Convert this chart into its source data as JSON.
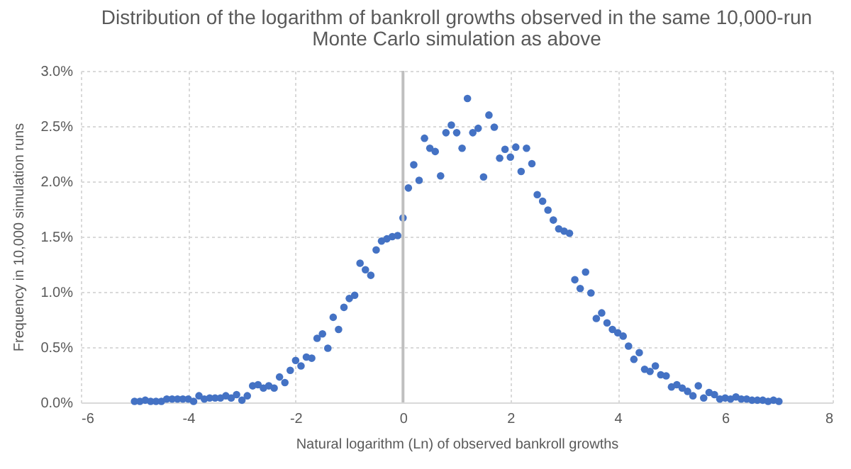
{
  "chart_data": {
    "type": "scatter",
    "title": "Distribution of the logarithm of bankroll growths observed in the same 10,000-run Monte Carlo simulation as above",
    "xlabel": "Natural logarithm (Ln) of observed bankroll growths",
    "ylabel": "Frequency in 10,000 simulation runs",
    "x": [
      -5,
      -4.9,
      -4.8,
      -4.7,
      -4.6,
      -4.5,
      -4.4,
      -4.3,
      -4.2,
      -4.1,
      -4,
      -3.9,
      -3.8,
      -3.7,
      -3.6,
      -3.5,
      -3.4,
      -3.3,
      -3.2,
      -3.1,
      -3,
      -2.9,
      -2.8,
      -2.7,
      -2.6,
      -2.5,
      -2.4,
      -2.3,
      -2.2,
      -2.1,
      -2,
      -1.9,
      -1.8,
      -1.7,
      -1.6,
      -1.5,
      -1.4,
      -1.3,
      -1.2,
      -1.1,
      -1,
      -0.9,
      -0.8,
      -0.7,
      -0.6,
      -0.5,
      -0.4,
      -0.3,
      -0.2,
      -0.1,
      0,
      0.1,
      0.2,
      0.3,
      0.4,
      0.5,
      0.6,
      0.7,
      0.8,
      0.9,
      1,
      1.1,
      1.2,
      1.3,
      1.4,
      1.5,
      1.6,
      1.7,
      1.8,
      1.9,
      2,
      2.1,
      2.2,
      2.3,
      2.4,
      2.5,
      2.6,
      2.7,
      2.8,
      2.9,
      3,
      3.1,
      3.2,
      3.3,
      3.4,
      3.5,
      3.6,
      3.7,
      3.8,
      3.9,
      4,
      4.1,
      4.2,
      4.3,
      4.4,
      4.5,
      4.6,
      4.7,
      4.8,
      4.9,
      5,
      5.1,
      5.2,
      5.3,
      5.4,
      5.5,
      5.6,
      5.7,
      5.8,
      5.9,
      6,
      6.1,
      6.2,
      6.3,
      6.4,
      6.5,
      6.6,
      6.7,
      6.8,
      6.9,
      7
    ],
    "series": [
      {
        "color": "#4472c4",
        "values": [
          0.01,
          0.01,
          0.02,
          0.01,
          0.01,
          0.01,
          0.03,
          0.03,
          0.03,
          0.03,
          0.03,
          0.01,
          0.06,
          0.03,
          0.04,
          0.04,
          0.04,
          0.06,
          0.04,
          0.07,
          0.02,
          0.06,
          0.15,
          0.16,
          0.13,
          0.15,
          0.13,
          0.23,
          0.18,
          0.29,
          0.38,
          0.33,
          0.41,
          0.4,
          0.58,
          0.62,
          0.49,
          0.77,
          0.66,
          0.86,
          0.94,
          0.97,
          1.26,
          1.2,
          1.15,
          1.38,
          1.46,
          1.48,
          1.5,
          1.51,
          1.67,
          1.94,
          2.15,
          2.01,
          2.39,
          2.3,
          2.27,
          2.05,
          2.44,
          2.51,
          2.44,
          2.3,
          2.75,
          2.44,
          2.48,
          2.04,
          2.6,
          2.49,
          2.21,
          2.29,
          2.22,
          2.31,
          2.09,
          2.3,
          2.16,
          1.88,
          1.82,
          1.74,
          1.65,
          1.57,
          1.55,
          1.53,
          1.11,
          1.03,
          1.18,
          0.99,
          0.76,
          0.81,
          0.72,
          0.66,
          0.63,
          0.6,
          0.51,
          0.39,
          0.45,
          0.3,
          0.28,
          0.33,
          0.25,
          0.24,
          0.14,
          0.16,
          0.13,
          0.1,
          0.06,
          0.15,
          0.04,
          0.09,
          0.07,
          0.03,
          0.04,
          0.03,
          0.05,
          0.03,
          0.03,
          0.02,
          0.02,
          0.02,
          0.01,
          0.02,
          0.01
        ]
      }
    ],
    "xlim": [
      -6,
      8
    ],
    "xticks": [
      -6,
      -4,
      -2,
      0,
      2,
      4,
      6,
      8
    ],
    "ylim": [
      0,
      3
    ],
    "yticks": [
      {
        "value": 0,
        "label": "0.0%"
      },
      {
        "value": 0.5,
        "label": "0.5%"
      },
      {
        "value": 1,
        "label": "1.0%"
      },
      {
        "value": 1.5,
        "label": "1.5%"
      },
      {
        "value": 2,
        "label": "2.0%"
      },
      {
        "value": 2.5,
        "label": "2.5%"
      },
      {
        "value": 3,
        "label": "3.0%"
      }
    ],
    "ref_lines": [
      {
        "axis": "x",
        "value": 0,
        "color": "#bfbfbf"
      }
    ],
    "grid": true,
    "marker": "circle"
  }
}
